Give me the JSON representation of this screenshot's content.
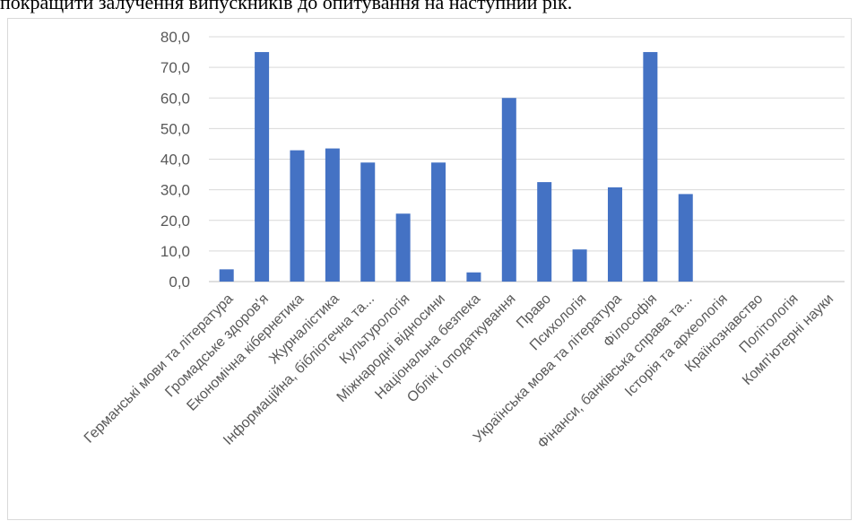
{
  "page": {
    "top_text": "покращити залучення випускників до опитування на наступний рік."
  },
  "chart_data": {
    "type": "bar",
    "title": "",
    "xlabel": "",
    "ylabel": "",
    "ylim": [
      0,
      80
    ],
    "ytick_labels": [
      "0,0",
      "10,0",
      "20,0",
      "30,0",
      "40,0",
      "50,0",
      "60,0",
      "70,0",
      "80,0"
    ],
    "grid": true,
    "bar_color": "#4472c4",
    "categories": [
      "Германські мови та література",
      "Громадське здоров'я",
      "Економічна кібернетика",
      "Журналістика",
      "Інформаційна, бібліотечна та...",
      "Культурологія",
      "Міжнародні відносини",
      "Національна безпека",
      "Облік і оподаткування",
      "Право",
      "Психологія",
      "Українська мова та література",
      "Філософія",
      "Фінанси, банківська справа та...",
      "Історія та археологія",
      "Країнознавство",
      "Політологія",
      "Комп'ютерні науки"
    ],
    "values": [
      4.0,
      75.0,
      42.9,
      43.5,
      38.9,
      22.2,
      38.9,
      3.0,
      60.0,
      32.5,
      10.5,
      30.8,
      75.0,
      28.6,
      0,
      0,
      0,
      0
    ]
  }
}
